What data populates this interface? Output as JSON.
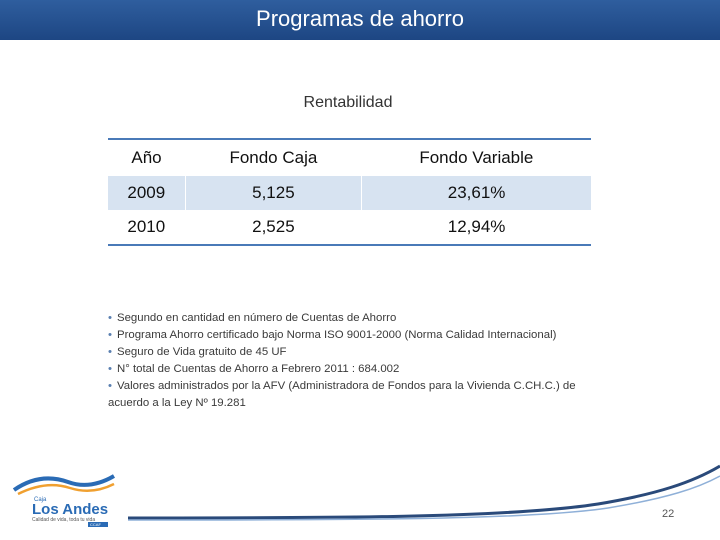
{
  "header": {
    "title": "Programas de ahorro"
  },
  "table": {
    "caption": "Rentabilidad",
    "columns": [
      "Año",
      "Fondo Caja",
      "Fondo Variable"
    ],
    "rows": [
      [
        "2009",
        "5,125",
        "23,61%"
      ],
      [
        "2010",
        "2,525",
        "12,94%"
      ]
    ]
  },
  "bullets": [
    "Segundo en cantidad en número de Cuentas de Ahorro",
    "Programa Ahorro  certificado bajo Norma ISO 9001-2000 (Norma Calidad    Internacional)",
    "Seguro de Vida gratuito de 45 UF",
    "N° total de Cuentas de Ahorro a Febrero 2011 : 684.002",
    "Valores administrados por la  AFV (Administradora de Fondos para la Vivienda C.CH.C.) de"
  ],
  "bullet_continuation": "acuerdo a la Ley  Nº 19.281",
  "logo": {
    "small": "Caja",
    "name": "Los Andes",
    "tagline": "Calidad de vida, toda tu vida",
    "badge": "CCAF"
  },
  "footer": {
    "page_number": "22"
  },
  "colors": {
    "header_bg": "#1d4683",
    "table_rule": "#4a7ab8",
    "row_shade": "#d7e3f1",
    "logo_blue": "#2a6bb5"
  }
}
